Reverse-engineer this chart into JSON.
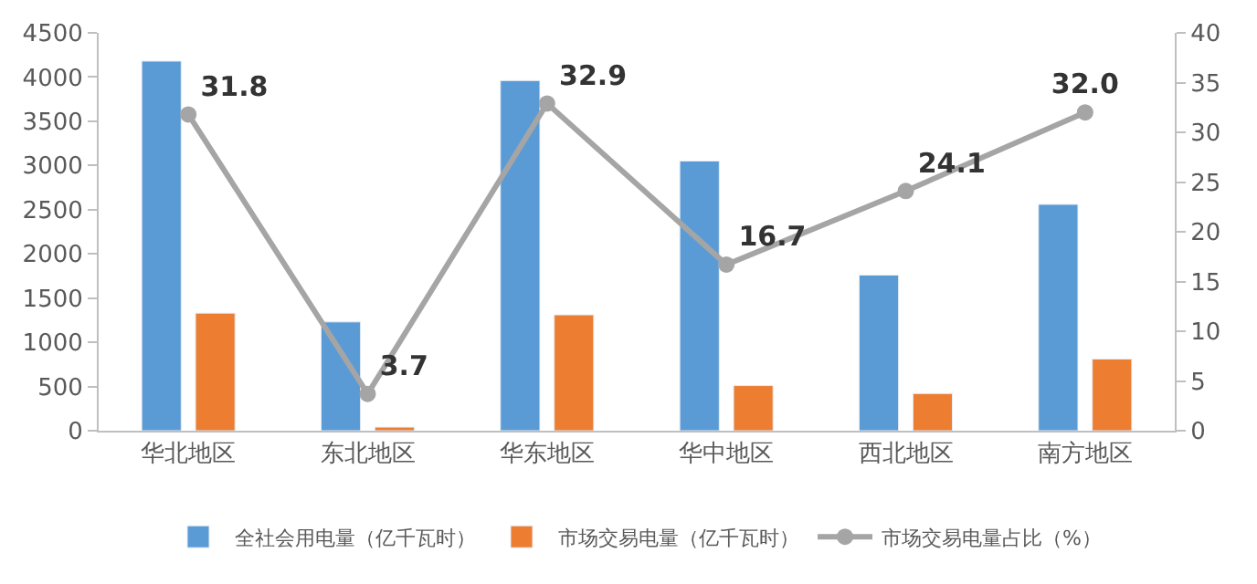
{
  "chart_data": {
    "type": "bar",
    "categories": [
      "华北地区",
      "东北地区",
      "华东地区",
      "华中地区",
      "西北地区",
      "南方地区"
    ],
    "series": [
      {
        "name": "全社会用电量（亿千瓦时）",
        "color": "#5b9bd5",
        "values": [
          4180,
          1230,
          3960,
          3050,
          1760,
          2560
        ]
      },
      {
        "name": "市场交易电量（亿千瓦时）",
        "color": "#ed7d31",
        "values": [
          1330,
          40,
          1310,
          510,
          420,
          810
        ]
      },
      {
        "name": "市场交易电量占比（%）",
        "type": "line",
        "axis": "y2",
        "color": "#a5a5a5",
        "marker": "circle",
        "value_labels": [
          "31.8",
          "3.7",
          "32.9",
          "16.7",
          "24.1",
          "32.0"
        ],
        "values": [
          31.8,
          3.7,
          32.9,
          16.7,
          24.1,
          32.0
        ]
      }
    ],
    "ylim": [
      0,
      4500
    ],
    "yticks": [
      0,
      500,
      1000,
      1500,
      2000,
      2500,
      3000,
      3500,
      4000,
      4500
    ],
    "y2lim": [
      0,
      40
    ],
    "y2ticks": [
      0,
      5,
      10,
      15,
      20,
      25,
      30,
      35,
      40
    ],
    "legend": "bottom"
  }
}
